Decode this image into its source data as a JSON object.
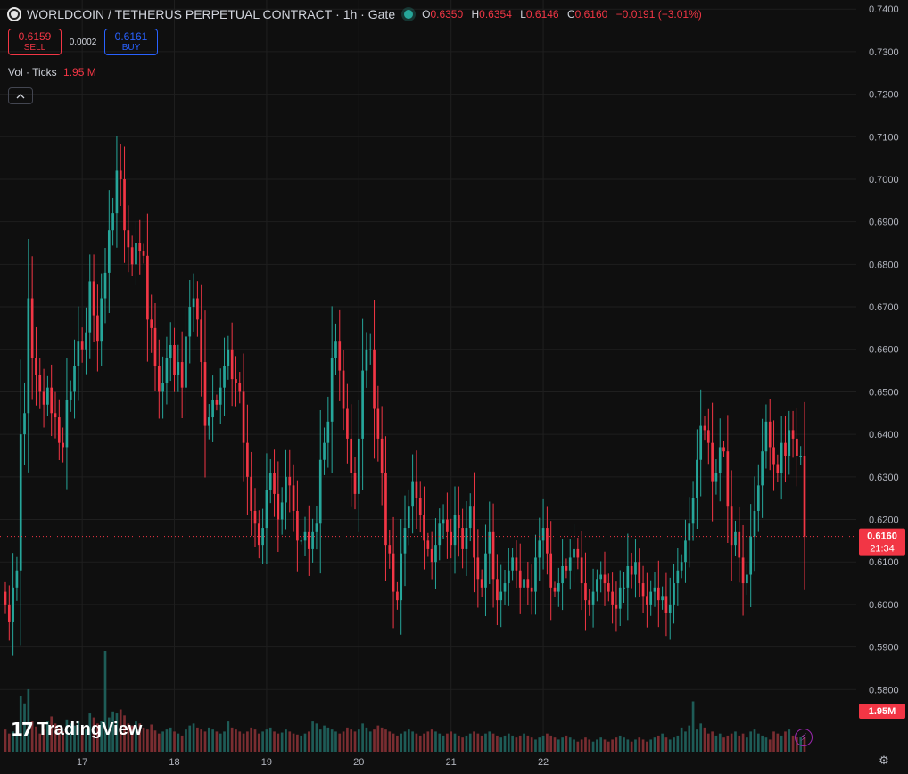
{
  "header": {
    "symbol_title": "WORLDCOIN / TETHERUS PERPETUAL CONTRACT",
    "interval": "1h",
    "exchange": "Gate",
    "ohlc": {
      "o": "0.6350",
      "h": "0.6354",
      "l": "0.6146",
      "c": "0.6160",
      "change": "−0.0191 (−3.01%)"
    }
  },
  "trade": {
    "sell_price": "0.6159",
    "sell_label": "SELL",
    "spread": "0.0002",
    "buy_price": "0.6161",
    "buy_label": "BUY"
  },
  "volume_legend": {
    "label": "Vol · Ticks",
    "value": "1.95 M"
  },
  "watermark": "TradingView",
  "colors": {
    "up": "#26a69a",
    "down": "#f23645",
    "vol_up": "#1e5c57",
    "vol_down": "#7a2d31",
    "background": "#0f0f0f",
    "grid": "#1f1f1f"
  },
  "icons": {
    "logo": "tradingview-logo-icon",
    "collapse": "chevron-up-icon",
    "lightning": "lightning-icon",
    "settings": "gear-icon"
  },
  "chart_data": {
    "type": "candlestick",
    "interval": "1h",
    "price_axis": {
      "ticks": [
        "0.7400",
        "0.7300",
        "0.7200",
        "0.7100",
        "0.7000",
        "0.6900",
        "0.6800",
        "0.6700",
        "0.6600",
        "0.6500",
        "0.6400",
        "0.6300",
        "0.6200",
        "0.6100",
        "0.6000",
        "0.5900",
        "0.5800"
      ],
      "range": [
        0.5744,
        0.7413
      ]
    },
    "time_axis": {
      "ticks": [
        "17",
        "18",
        "19",
        "20",
        "21",
        "22"
      ]
    },
    "last_price": {
      "value": "0.6160",
      "countdown": "21:34"
    },
    "last_volume_label": "1.95M",
    "start_price": 0.603,
    "closes": [
      0.6,
      0.596,
      0.604,
      0.608,
      0.64,
      0.645,
      0.672,
      0.658,
      0.654,
      0.65,
      0.647,
      0.651,
      0.645,
      0.644,
      0.638,
      0.637,
      0.648,
      0.65,
      0.656,
      0.662,
      0.66,
      0.664,
      0.676,
      0.668,
      0.662,
      0.672,
      0.678,
      0.688,
      0.692,
      0.702,
      0.7,
      0.688,
      0.684,
      0.68,
      0.685,
      0.683,
      0.682,
      0.667,
      0.665,
      0.656,
      0.65,
      0.652,
      0.658,
      0.661,
      0.654,
      0.657,
      0.651,
      0.663,
      0.67,
      0.672,
      0.667,
      0.657,
      0.642,
      0.644,
      0.648,
      0.647,
      0.651,
      0.656,
      0.66,
      0.653,
      0.652,
      0.65,
      0.638,
      0.63,
      0.622,
      0.619,
      0.614,
      0.618,
      0.627,
      0.631,
      0.626,
      0.62,
      0.624,
      0.63,
      0.628,
      0.622,
      0.615,
      0.615,
      0.617,
      0.613,
      0.617,
      0.619,
      0.634,
      0.638,
      0.643,
      0.658,
      0.662,
      0.655,
      0.646,
      0.639,
      0.631,
      0.626,
      0.639,
      0.655,
      0.66,
      0.66,
      0.646,
      0.639,
      0.631,
      0.614,
      0.612,
      0.603,
      0.601,
      0.612,
      0.618,
      0.623,
      0.629,
      0.625,
      0.621,
      0.615,
      0.613,
      0.61,
      0.614,
      0.619,
      0.62,
      0.617,
      0.614,
      0.621,
      0.618,
      0.613,
      0.618,
      0.623,
      0.611,
      0.606,
      0.604,
      0.612,
      0.617,
      0.606,
      0.601,
      0.603,
      0.605,
      0.608,
      0.611,
      0.608,
      0.604,
      0.606,
      0.604,
      0.603,
      0.611,
      0.615,
      0.618,
      0.612,
      0.604,
      0.603,
      0.605,
      0.609,
      0.608,
      0.611,
      0.613,
      0.611,
      0.605,
      0.601,
      0.6,
      0.603,
      0.606,
      0.607,
      0.605,
      0.603,
      0.6,
      0.599,
      0.604,
      0.604,
      0.609,
      0.607,
      0.61,
      0.605,
      0.602,
      0.6,
      0.603,
      0.604,
      0.601,
      0.602,
      0.598,
      0.6,
      0.605,
      0.608,
      0.61,
      0.615,
      0.619,
      0.625,
      0.634,
      0.642,
      0.641,
      0.638,
      0.629,
      0.631,
      0.637,
      0.636,
      0.623,
      0.614,
      0.617,
      0.611,
      0.605,
      0.607,
      0.616,
      0.622,
      0.628,
      0.636,
      0.643,
      0.637,
      0.633,
      0.631,
      0.638,
      0.635,
      0.641,
      0.639,
      0.635,
      0.635,
      0.616
    ],
    "volumes_relative": [
      0.22,
      0.18,
      0.2,
      0.25,
      0.55,
      0.48,
      0.62,
      0.3,
      0.25,
      0.18,
      0.22,
      0.3,
      0.35,
      0.28,
      0.24,
      0.2,
      0.32,
      0.28,
      0.26,
      0.3,
      0.25,
      0.22,
      0.38,
      0.34,
      0.28,
      0.3,
      1.0,
      0.34,
      0.4,
      0.38,
      0.42,
      0.36,
      0.28,
      0.26,
      0.3,
      0.28,
      0.24,
      0.22,
      0.27,
      0.21,
      0.18,
      0.2,
      0.22,
      0.24,
      0.2,
      0.18,
      0.16,
      0.22,
      0.26,
      0.28,
      0.24,
      0.22,
      0.2,
      0.24,
      0.22,
      0.2,
      0.18,
      0.2,
      0.3,
      0.24,
      0.22,
      0.2,
      0.18,
      0.2,
      0.24,
      0.22,
      0.18,
      0.2,
      0.22,
      0.24,
      0.2,
      0.18,
      0.19,
      0.22,
      0.2,
      0.18,
      0.17,
      0.16,
      0.18,
      0.2,
      0.3,
      0.28,
      0.22,
      0.26,
      0.24,
      0.22,
      0.2,
      0.18,
      0.2,
      0.24,
      0.22,
      0.2,
      0.22,
      0.28,
      0.24,
      0.2,
      0.22,
      0.26,
      0.24,
      0.22,
      0.2,
      0.18,
      0.16,
      0.18,
      0.2,
      0.22,
      0.2,
      0.18,
      0.16,
      0.18,
      0.2,
      0.22,
      0.2,
      0.18,
      0.16,
      0.18,
      0.2,
      0.18,
      0.16,
      0.14,
      0.16,
      0.18,
      0.2,
      0.18,
      0.16,
      0.18,
      0.2,
      0.18,
      0.16,
      0.14,
      0.16,
      0.18,
      0.16,
      0.14,
      0.16,
      0.18,
      0.16,
      0.14,
      0.12,
      0.14,
      0.16,
      0.18,
      0.16,
      0.14,
      0.12,
      0.14,
      0.16,
      0.14,
      0.12,
      0.1,
      0.12,
      0.14,
      0.12,
      0.1,
      0.12,
      0.14,
      0.12,
      0.1,
      0.12,
      0.14,
      0.16,
      0.14,
      0.12,
      0.1,
      0.12,
      0.14,
      0.12,
      0.1,
      0.12,
      0.14,
      0.16,
      0.18,
      0.14,
      0.12,
      0.14,
      0.16,
      0.24,
      0.2,
      0.26,
      0.5,
      0.22,
      0.28,
      0.24,
      0.18,
      0.2,
      0.16,
      0.18,
      0.14,
      0.16,
      0.18,
      0.2,
      0.16,
      0.18,
      0.14,
      0.2,
      0.22,
      0.18,
      0.16,
      0.14,
      0.12,
      0.2,
      0.18,
      0.16,
      0.2,
      0.22,
      0.16
    ]
  }
}
